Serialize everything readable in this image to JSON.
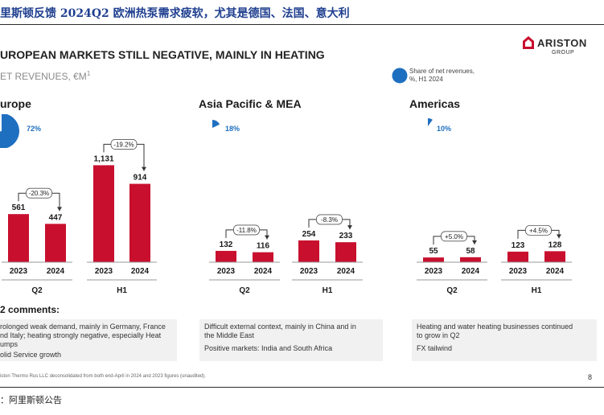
{
  "doc_title": "里斯顿反馈 2024Q2 欧洲热泵需求疲软，尤其是德国、法国、意大利",
  "slide_title": "UROPEAN MARKETS STILL NEGATIVE, MAINLY IN HEATING",
  "subtitle": "ET REVENUES, €M",
  "subtitle_note": "1",
  "logo": {
    "word": "ARISTON",
    "sub": "GROUP"
  },
  "legend": {
    "line1": "Share of net revenues,",
    "line2": "%, H1 2024"
  },
  "comments_title": "2 comments:",
  "regions": [
    {
      "name": "urope",
      "share": "72%",
      "comments": [
        "rolonged weak demand, mainly in Germany, France",
        "nd Italy; heating strongly negative, especially Heat",
        "umps",
        "olid Service growth"
      ]
    },
    {
      "name": "Asia Pacific & MEA",
      "share": "18%",
      "comments": [
        "Difficult external context, mainly in China and in",
        "the Middle East",
        "Positive markets: India and South Africa"
      ]
    },
    {
      "name": "Americas",
      "share": "10%",
      "comments": [
        "Heating and water heating businesses continued",
        "to grow in Q2",
        "FX tailwind"
      ]
    }
  ],
  "chart_data": [
    {
      "type": "bar",
      "title": "urope",
      "categories": [
        "2023",
        "2024",
        "2023",
        "2024"
      ],
      "groups": [
        "Q2",
        "H1"
      ],
      "values": [
        561,
        447,
        1131,
        914
      ],
      "changes": [
        "-20.3%",
        "-19.2%"
      ],
      "share_h1_2024": 72
    },
    {
      "type": "bar",
      "title": "Asia Pacific & MEA",
      "categories": [
        "2023",
        "2024",
        "2023",
        "2024"
      ],
      "groups": [
        "Q2",
        "H1"
      ],
      "values": [
        132,
        116,
        254,
        233
      ],
      "changes": [
        "-11.8%",
        "-8.3%"
      ],
      "share_h1_2024": 18
    },
    {
      "type": "bar",
      "title": "Americas",
      "categories": [
        "2023",
        "2024",
        "2023",
        "2024"
      ],
      "groups": [
        "Q2",
        "H1"
      ],
      "values": [
        55,
        58,
        123,
        128
      ],
      "changes": [
        "+5.0%",
        "+4.5%"
      ],
      "share_h1_2024": 10
    }
  ],
  "colors": {
    "bar": "#c8102e",
    "pie": "#1f6fc0",
    "title": "#1f3f8f",
    "comment_bg": "#f1f1f1"
  },
  "footnote": "iston Thermo Rus LLC deconsolidated from both end-April in 2024 and 2023 figures (unaudited).",
  "page_number": "8",
  "source": "：阿里斯顿公告"
}
